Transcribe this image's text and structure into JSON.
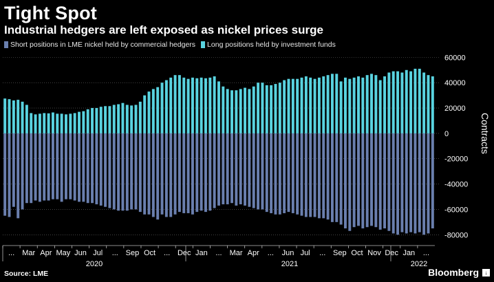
{
  "header": {
    "title": "Tight Spot",
    "subtitle": "Industrial hedgers are left exposed as nickel prices surge"
  },
  "footer": {
    "source": "Source: LME",
    "brand": "Bloomberg",
    "brand_icon": "bloomberg-logo-icon"
  },
  "colors": {
    "background": "#000000",
    "short_series": "#6a7fae",
    "long_series": "#59d3e0",
    "grid": "#6e6e6e"
  },
  "chart_data": {
    "type": "bar",
    "stacked_diverging": true,
    "title": "Tight Spot",
    "subtitle": "Industrial hedgers are left exposed as nickel prices surge",
    "ylabel": "Contracts",
    "ylim": [
      -88000,
      64000
    ],
    "yticks": [
      60000,
      40000,
      20000,
      0,
      -20000,
      -40000,
      -60000,
      -80000
    ],
    "ytick_labels": [
      "60000",
      "40000",
      "20000",
      "0",
      "-20000",
      "-40000",
      "-60000",
      "-80000"
    ],
    "y_axis_side": "right",
    "grid": true,
    "legend_position": "top-left",
    "x_month_labels": [
      "...",
      "Mar",
      "Apr",
      "May",
      "Jun",
      "Jul",
      "...",
      "Sep",
      "Oct",
      "...",
      "Dec",
      "Jan",
      "...",
      "Mar",
      "Apr",
      "...",
      "Jun",
      "Jul",
      "...",
      "Sep",
      "Oct",
      "Nov",
      "Dec",
      "Jan",
      "..."
    ],
    "x_year_labels": [
      "2020",
      "2021",
      "2022"
    ],
    "series": [
      {
        "name": "Short positions in LME nickel held by commercial hedgers",
        "values": [
          -65000,
          -66000,
          -58000,
          -67000,
          -60000,
          -55000,
          -55000,
          -53000,
          -54000,
          -53000,
          -53000,
          -52000,
          -52000,
          -54000,
          -52000,
          -52000,
          -53000,
          -54000,
          -54000,
          -55000,
          -55000,
          -56000,
          -57000,
          -58000,
          -59000,
          -60000,
          -61000,
          -61000,
          -61000,
          -60000,
          -60000,
          -62000,
          -64000,
          -64000,
          -66000,
          -68000,
          -64000,
          -66000,
          -66000,
          -64000,
          -62000,
          -63000,
          -63000,
          -64000,
          -62000,
          -61000,
          -62000,
          -61000,
          -59000,
          -57000,
          -56000,
          -56000,
          -55000,
          -57000,
          -56000,
          -57000,
          -58000,
          -59000,
          -60000,
          -60000,
          -62000,
          -63000,
          -64000,
          -64000,
          -63000,
          -62000,
          -63000,
          -64000,
          -65000,
          -66000,
          -66000,
          -66000,
          -67000,
          -67000,
          -68000,
          -70000,
          -70000,
          -72000,
          -75000,
          -77000,
          -74000,
          -73000,
          -75000,
          -74000,
          -73000,
          -74000,
          -76000,
          -75000,
          -77000,
          -79000,
          -80000,
          -78000,
          -79000,
          -78000,
          -79000,
          -78000,
          -80000,
          -79000,
          -75000
        ]
      },
      {
        "name": "Long positions held by investment funds",
        "values": [
          27500,
          27000,
          26000,
          26500,
          25000,
          22500,
          16000,
          15000,
          15500,
          16000,
          15800,
          16500,
          15500,
          15500,
          15000,
          15500,
          16000,
          17000,
          17500,
          19000,
          20000,
          20000,
          21000,
          21500,
          21500,
          22500,
          23000,
          24000,
          22500,
          22000,
          22500,
          25000,
          30000,
          33000,
          35000,
          36500,
          40000,
          42000,
          44000,
          46000,
          46000,
          44000,
          43000,
          44000,
          43500,
          44000,
          43500,
          44000,
          45000,
          41000,
          37000,
          35000,
          34000,
          34000,
          35000,
          36000,
          35000,
          37000,
          40000,
          40000,
          38000,
          38000,
          39000,
          40000,
          42000,
          43000,
          43000,
          43000,
          44000,
          45000,
          44000,
          43000,
          44000,
          45000,
          46000,
          47000,
          47000,
          41000,
          44000,
          43000,
          44000,
          45000,
          44000,
          46000,
          47000,
          46000,
          42000,
          45000,
          48000,
          49000,
          49000,
          48000,
          50000,
          49000,
          51000,
          51000,
          48000,
          46000,
          45000
        ]
      }
    ]
  }
}
